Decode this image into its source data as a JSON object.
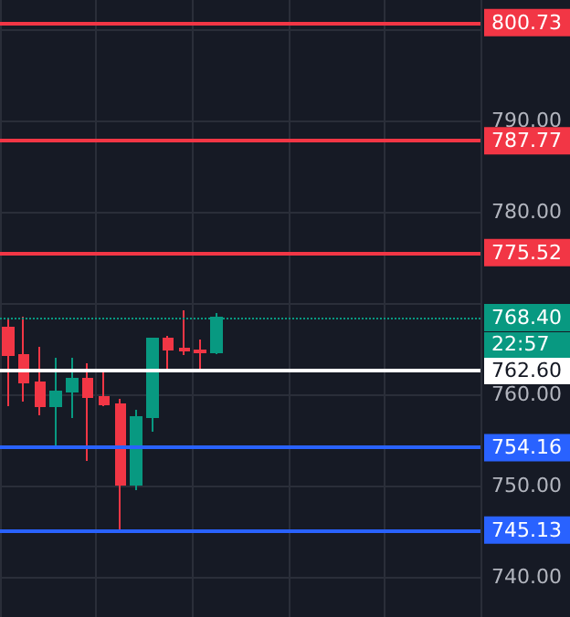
{
  "chart_data": {
    "type": "candlestick",
    "categories": [
      null,
      null,
      null,
      null,
      null,
      null,
      null,
      null,
      null,
      null,
      null,
      null,
      null,
      null,
      null,
      null,
      null,
      null,
      null,
      null,
      null,
      null,
      null,
      null,
      null,
      null,
      null,
      null,
      null,
      null
    ],
    "ohlc": [
      [
        767.3,
        768.2,
        758.7,
        764.3
      ],
      [
        764.3,
        768.5,
        759.2,
        761.3
      ],
      [
        761.3,
        765.2,
        757.7,
        758.7
      ],
      [
        758.7,
        764.0,
        754.3,
        760.3
      ],
      [
        760.3,
        764.0,
        757.4,
        761.7
      ],
      [
        761.7,
        763.4,
        752.7,
        759.7
      ],
      [
        759.7,
        762.4,
        758.7,
        758.9
      ],
      [
        758.9,
        759.5,
        745.1,
        750.1
      ],
      [
        750.1,
        758.3,
        749.5,
        757.5
      ],
      [
        757.5,
        766.1,
        755.9,
        766.1
      ],
      [
        766.1,
        766.4,
        762.7,
        764.9
      ],
      [
        765.0,
        769.2,
        764.3,
        764.8
      ],
      [
        764.8,
        766.0,
        762.4,
        764.6
      ],
      [
        764.6,
        768.9,
        764.4,
        768.4
      ],
      null,
      null,
      null,
      null,
      null,
      null,
      null,
      null,
      null,
      null,
      null,
      null,
      null,
      null,
      null,
      null
    ],
    "ylim": [
      735.6,
      803.2
    ],
    "yticks": [
      {
        "value": 740,
        "label": "740.00"
      },
      {
        "value": 750,
        "label": "750.00"
      },
      {
        "value": 760,
        "label": "760.00"
      },
      {
        "value": 770,
        "label": null
      },
      {
        "value": 780,
        "label": "780.00"
      },
      {
        "value": 790,
        "label": "790.00"
      },
      {
        "value": 800,
        "label": null
      }
    ],
    "grid": true,
    "tick_labels": "y",
    "ref_lines": [
      {
        "axis": "y",
        "value": 800.73,
        "label": "800.73",
        "color": "#f23645",
        "line_style": "solid"
      },
      {
        "axis": "y",
        "value": 787.77,
        "label": "787.77",
        "color": "#f23645",
        "line_style": "solid"
      },
      {
        "axis": "y",
        "value": 775.52,
        "label": "775.52",
        "color": "#f23645",
        "line_style": "solid"
      },
      {
        "axis": "y",
        "value": 768.4,
        "label": "768.40",
        "color": "#089981",
        "line_style": "dotted"
      },
      {
        "axis": "y",
        "value": 762.6,
        "label": "762.60",
        "color": "#ffffff",
        "line_style": "solid"
      },
      {
        "axis": "y",
        "value": 754.16,
        "label": "754.16",
        "color": "#2962ff",
        "line_style": "solid"
      },
      {
        "axis": "y",
        "value": 745.13,
        "label": "745.13",
        "color": "#2962ff",
        "line_style": "solid"
      }
    ],
    "annotations": [
      "22:57"
    ]
  }
}
